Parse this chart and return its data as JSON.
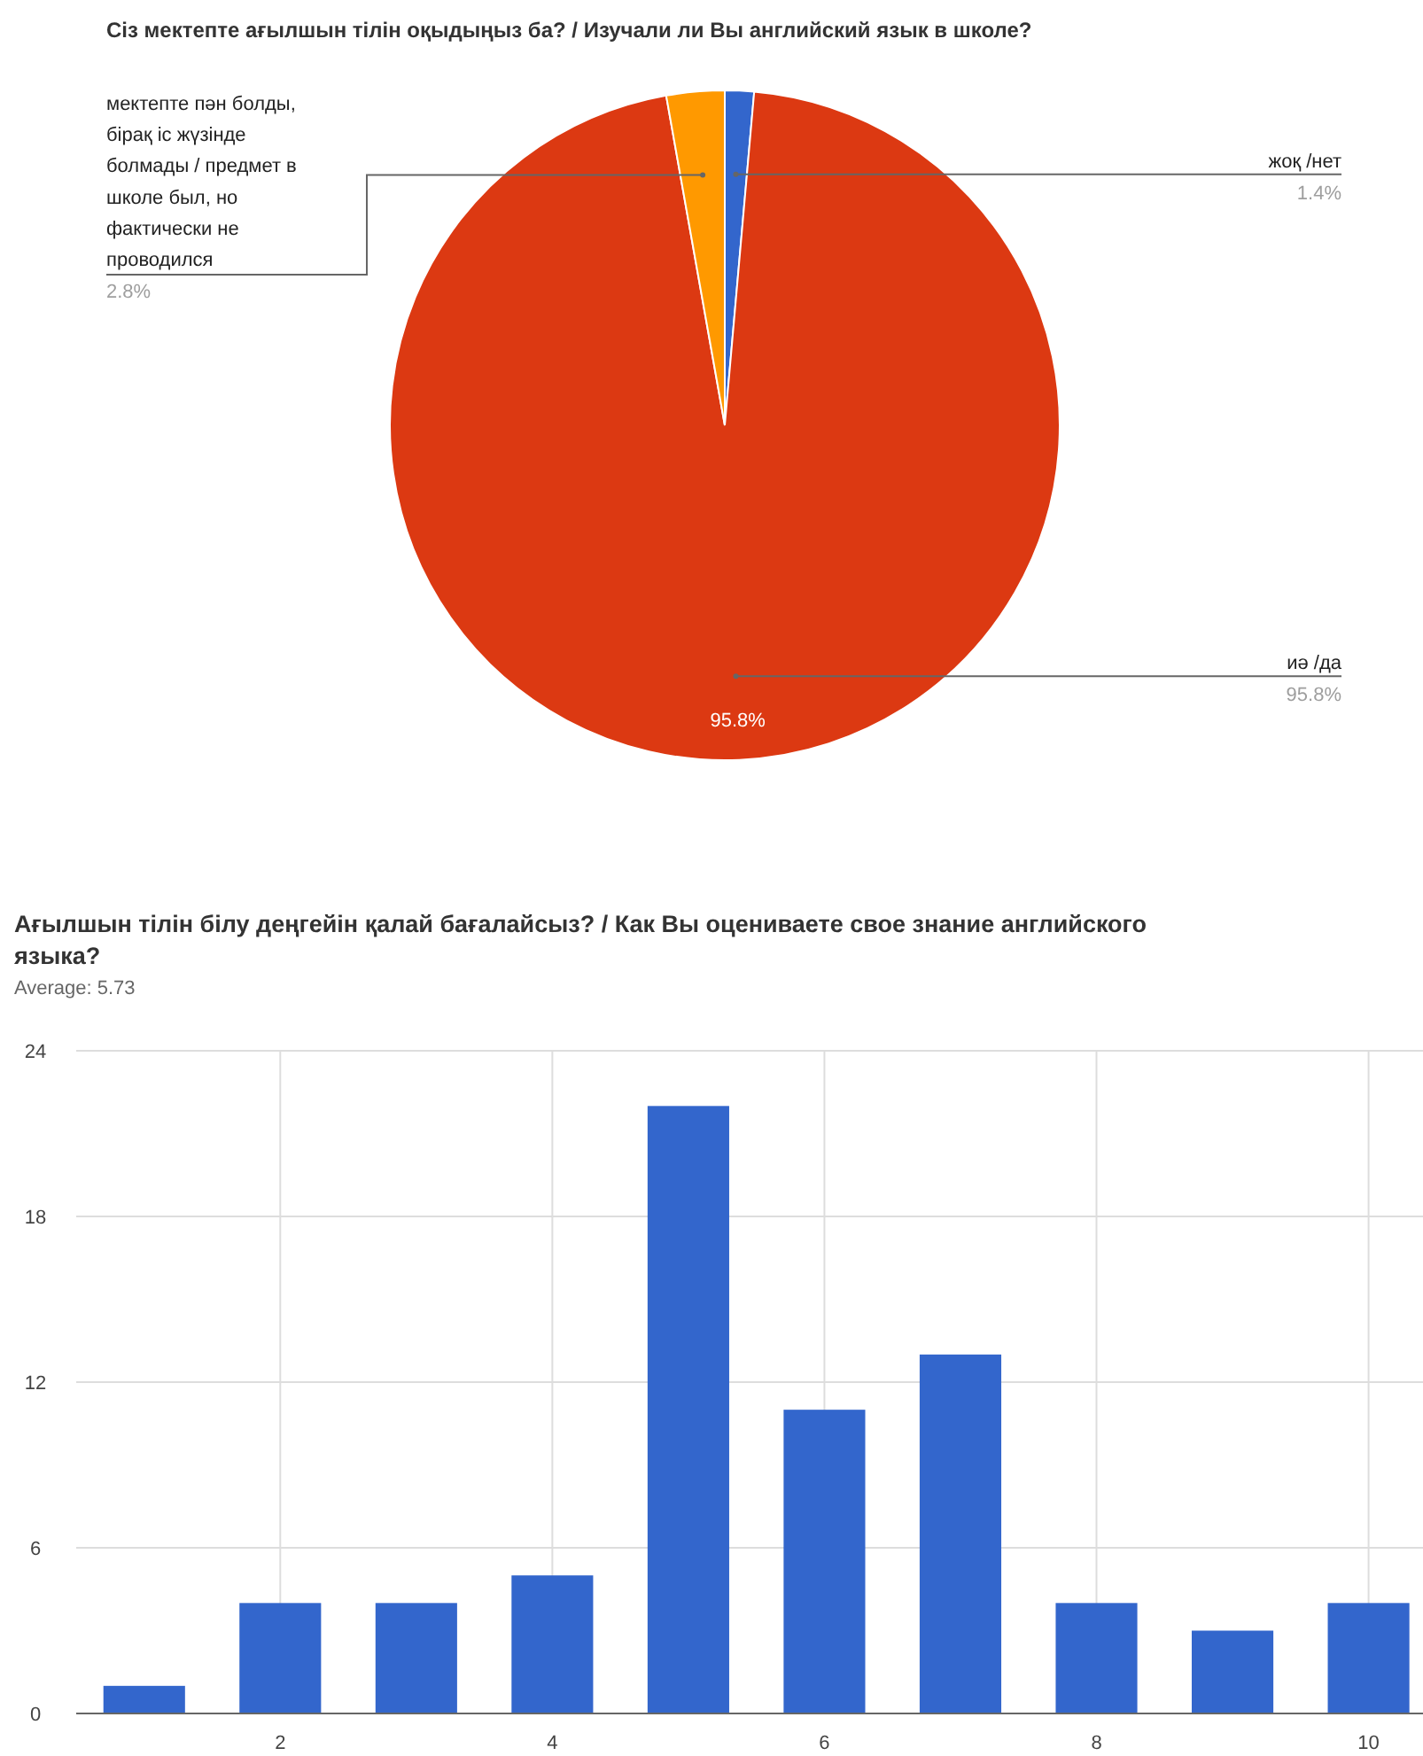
{
  "chart_data": [
    {
      "type": "pie",
      "title": "Сіз мектепте ағылшын тілін оқыдыңыз ба? / Изучали ли Вы английский язык в школе?",
      "categories": [
        "жоқ /нет",
        "иә /да",
        "мектепте пән болды, бірақ іс жүзінде болмады / предмет в школе был, но фактически не проводился"
      ],
      "values": [
        1.4,
        95.8,
        2.8
      ],
      "colors": [
        "#3366cc",
        "#dc3912",
        "#ff9900"
      ],
      "value_labels": [
        "1.4%",
        "95.8%",
        "2.8%"
      ],
      "annotations": [
        {
          "text": "95.8%",
          "x": "иә /да"
        }
      ]
    },
    {
      "type": "bar",
      "title": "Ағылшын тілін білу деңгейін қалай бағалайсыз? / Как Вы оцениваете свое знание английского языка?",
      "subtitle": "Average: 5.73",
      "x": [
        1,
        2,
        3,
        4,
        5,
        6,
        7,
        8,
        9,
        10
      ],
      "values": [
        1,
        4,
        4,
        5,
        22,
        11,
        13,
        4,
        3,
        4
      ],
      "color": "#3366cc",
      "xlim": [
        0.5,
        10.4
      ],
      "xticks": [
        2,
        4,
        6,
        8,
        10
      ],
      "ylim": [
        0,
        24
      ],
      "yticks": [
        0,
        6,
        12,
        18,
        24
      ],
      "grid": true
    }
  ]
}
